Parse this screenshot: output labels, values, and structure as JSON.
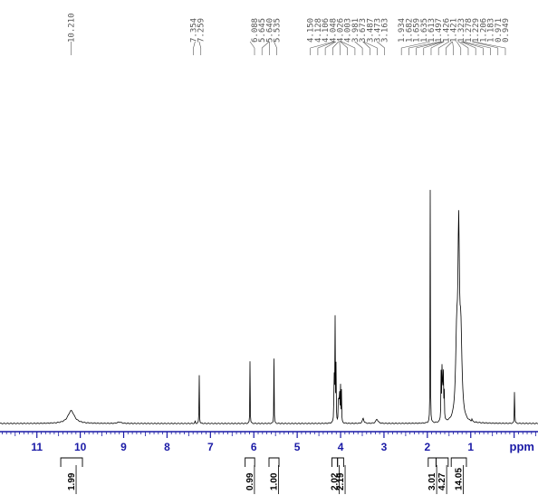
{
  "chart_data": {
    "type": "line",
    "title": "",
    "xlabel": "ppm",
    "ylabel": "",
    "xlim": [
      11.85,
      -0.55
    ],
    "x_direction": "reversed",
    "grid": false,
    "legend": "none",
    "colors": {
      "spectrum": "#000000",
      "axis": "#1a1aa6",
      "labels": "#555555",
      "integrals": "#000000"
    },
    "tick_labels": [
      "11",
      "10",
      "9",
      "8",
      "7",
      "6",
      "5",
      "4",
      "3",
      "2",
      "1",
      "ppm"
    ],
    "tick_values": [
      11,
      10,
      9,
      8,
      7,
      6,
      5,
      4,
      3,
      2,
      1
    ],
    "peak_labels": [
      "10.210",
      "7.354",
      "7.259",
      "6.088",
      "5.645",
      "5.640",
      "5.535",
      "4.150",
      "4.128",
      "4.106",
      "4.048",
      "4.026",
      "4.003",
      "3.981",
      "3.673",
      "3.487",
      "3.473",
      "3.163",
      "1.934",
      "1.682",
      "1.659",
      "1.635",
      "1.613",
      "1.497",
      "1.426",
      "1.421",
      "1.323",
      "1.278",
      "1.229",
      "1.206",
      "1.183",
      "0.971",
      "0.949"
    ],
    "peaks": [
      {
        "ppm": 10.21,
        "height": 0.055,
        "width": 0.09
      },
      {
        "ppm": 9.1,
        "height": 0.006,
        "width": 0.05
      },
      {
        "ppm": 7.354,
        "height": 0.015,
        "width": 0.004
      },
      {
        "ppm": 7.259,
        "height": 0.24,
        "width": 0.004
      },
      {
        "ppm": 6.088,
        "height": 0.27,
        "width": 0.004
      },
      {
        "ppm": 5.535,
        "height": 0.28,
        "width": 0.004
      },
      {
        "ppm": 4.15,
        "height": 0.25,
        "width": 0.005
      },
      {
        "ppm": 4.128,
        "height": 0.5,
        "width": 0.005
      },
      {
        "ppm": 4.106,
        "height": 0.24,
        "width": 0.005
      },
      {
        "ppm": 4.048,
        "height": 0.18,
        "width": 0.005
      },
      {
        "ppm": 4.026,
        "height": 0.2,
        "width": 0.005
      },
      {
        "ppm": 4.003,
        "height": 0.18,
        "width": 0.005
      },
      {
        "ppm": 3.981,
        "height": 0.14,
        "width": 0.005
      },
      {
        "ppm": 3.48,
        "height": 0.022,
        "width": 0.02
      },
      {
        "ppm": 3.163,
        "height": 0.018,
        "width": 0.03
      },
      {
        "ppm": 1.934,
        "height": 1.0,
        "width": 0.004
      },
      {
        "ppm": 1.682,
        "height": 0.22,
        "width": 0.006
      },
      {
        "ppm": 1.659,
        "height": 0.3,
        "width": 0.006
      },
      {
        "ppm": 1.635,
        "height": 0.26,
        "width": 0.006
      },
      {
        "ppm": 1.613,
        "height": 0.14,
        "width": 0.006
      },
      {
        "ppm": 1.323,
        "height": 0.33,
        "width": 0.03
      },
      {
        "ppm": 1.278,
        "height": 0.72,
        "width": 0.02
      },
      {
        "ppm": 1.229,
        "height": 0.35,
        "width": 0.03
      },
      {
        "ppm": 0.971,
        "height": 0.012,
        "width": 0.006
      },
      {
        "ppm": -0.01,
        "height": 0.2,
        "width": 0.004
      }
    ],
    "integrals": [
      {
        "from_ppm": 10.45,
        "to_ppm": 9.95,
        "value": "1.99"
      },
      {
        "from_ppm": 6.2,
        "to_ppm": 5.98,
        "value": "0.99"
      },
      {
        "from_ppm": 5.65,
        "to_ppm": 5.42,
        "value": "1.00"
      },
      {
        "from_ppm": 4.2,
        "to_ppm": 4.07,
        "value": "2.02"
      },
      {
        "from_ppm": 4.07,
        "to_ppm": 3.93,
        "value": "2.19"
      },
      {
        "from_ppm": 1.98,
        "to_ppm": 1.8,
        "value": "3.01"
      },
      {
        "from_ppm": 1.8,
        "to_ppm": 1.52,
        "value": "4.27"
      },
      {
        "from_ppm": 1.45,
        "to_ppm": 1.1,
        "value": "14.05"
      }
    ]
  }
}
